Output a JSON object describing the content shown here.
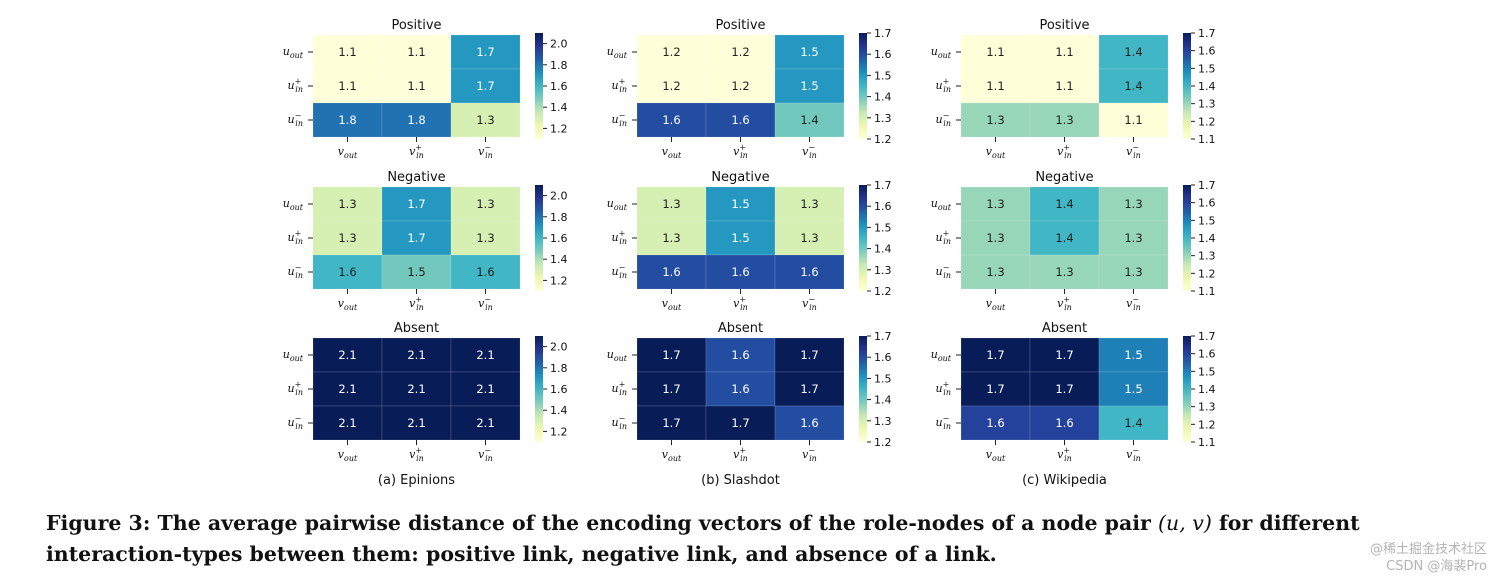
{
  "chart_data": {
    "type": "heatmap",
    "row_labels": [
      {
        "base": "u",
        "sub": "out",
        "sup": ""
      },
      {
        "base": "u",
        "sub": "in",
        "sup": "+"
      },
      {
        "base": "u",
        "sub": "in",
        "sup": "−"
      }
    ],
    "col_labels": [
      {
        "base": "v",
        "sub": "out",
        "sup": ""
      },
      {
        "base": "v",
        "sub": "in",
        "sup": "+"
      },
      {
        "base": "v",
        "sub": "in",
        "sup": "−"
      }
    ],
    "colormap": "YlGnBu",
    "datasets": [
      {
        "name": "Epinions",
        "subcaption": "(a) Epinions",
        "panels": [
          {
            "title": "Positive",
            "values": [
              [
                1.1,
                1.1,
                1.7
              ],
              [
                1.1,
                1.1,
                1.7
              ],
              [
                1.8,
                1.8,
                1.3
              ]
            ],
            "cbar_range": [
              1.1,
              2.1
            ],
            "cbar_ticks": [
              "1.2",
              "1.4",
              "1.6",
              "1.8",
              "2.0"
            ]
          },
          {
            "title": "Negative",
            "values": [
              [
                1.3,
                1.7,
                1.3
              ],
              [
                1.3,
                1.7,
                1.3
              ],
              [
                1.6,
                1.5,
                1.6
              ]
            ],
            "cbar_range": [
              1.1,
              2.1
            ],
            "cbar_ticks": [
              "1.2",
              "1.4",
              "1.6",
              "1.8",
              "2.0"
            ]
          },
          {
            "title": "Absent",
            "values": [
              [
                2.1,
                2.1,
                2.1
              ],
              [
                2.1,
                2.1,
                2.1
              ],
              [
                2.1,
                2.1,
                2.1
              ]
            ],
            "cbar_range": [
              1.1,
              2.1
            ],
            "cbar_ticks": [
              "1.2",
              "1.4",
              "1.6",
              "1.8",
              "2.0"
            ]
          }
        ]
      },
      {
        "name": "Slashdot",
        "subcaption": "(b) Slashdot",
        "panels": [
          {
            "title": "Positive",
            "values": [
              [
                1.2,
                1.2,
                1.5
              ],
              [
                1.2,
                1.2,
                1.5
              ],
              [
                1.6,
                1.6,
                1.4
              ]
            ],
            "cbar_range": [
              1.2,
              1.7
            ],
            "cbar_ticks": [
              "1.2",
              "1.3",
              "1.4",
              "1.5",
              "1.6",
              "1.7"
            ]
          },
          {
            "title": "Negative",
            "values": [
              [
                1.3,
                1.5,
                1.3
              ],
              [
                1.3,
                1.5,
                1.3
              ],
              [
                1.6,
                1.6,
                1.6
              ]
            ],
            "cbar_range": [
              1.2,
              1.7
            ],
            "cbar_ticks": [
              "1.2",
              "1.3",
              "1.4",
              "1.5",
              "1.6",
              "1.7"
            ]
          },
          {
            "title": "Absent",
            "values": [
              [
                1.7,
                1.6,
                1.7
              ],
              [
                1.7,
                1.6,
                1.7
              ],
              [
                1.7,
                1.7,
                1.6
              ]
            ],
            "cbar_range": [
              1.2,
              1.7
            ],
            "cbar_ticks": [
              "1.2",
              "1.3",
              "1.4",
              "1.5",
              "1.6",
              "1.7"
            ]
          }
        ]
      },
      {
        "name": "Wikipedia",
        "subcaption": "(c) Wikipedia",
        "panels": [
          {
            "title": "Positive",
            "values": [
              [
                1.1,
                1.1,
                1.4
              ],
              [
                1.1,
                1.1,
                1.4
              ],
              [
                1.3,
                1.3,
                1.1
              ]
            ],
            "cbar_range": [
              1.1,
              1.7
            ],
            "cbar_ticks": [
              "1.1",
              "1.2",
              "1.3",
              "1.4",
              "1.5",
              "1.6",
              "1.7"
            ]
          },
          {
            "title": "Negative",
            "values": [
              [
                1.3,
                1.4,
                1.3
              ],
              [
                1.3,
                1.4,
                1.3
              ],
              [
                1.3,
                1.3,
                1.3
              ]
            ],
            "cbar_range": [
              1.1,
              1.7
            ],
            "cbar_ticks": [
              "1.1",
              "1.2",
              "1.3",
              "1.4",
              "1.5",
              "1.6",
              "1.7"
            ]
          },
          {
            "title": "Absent",
            "values": [
              [
                1.7,
                1.7,
                1.5
              ],
              [
                1.7,
                1.7,
                1.5
              ],
              [
                1.6,
                1.6,
                1.4
              ]
            ],
            "cbar_range": [
              1.1,
              1.7
            ],
            "cbar_ticks": [
              "1.1",
              "1.2",
              "1.3",
              "1.4",
              "1.5",
              "1.6",
              "1.7"
            ]
          }
        ]
      }
    ]
  },
  "caption": {
    "lead": "Figure 3: The average pairwise distance of the encoding vectors of the role-nodes of a node pair ",
    "math": "(u, v)",
    "tail": " for different interaction-types between them: positive link, negative link, and absence of a link."
  },
  "watermark": {
    "line1": "@稀土掘金技术社区",
    "line2": "CSDN @海裴Pro"
  }
}
